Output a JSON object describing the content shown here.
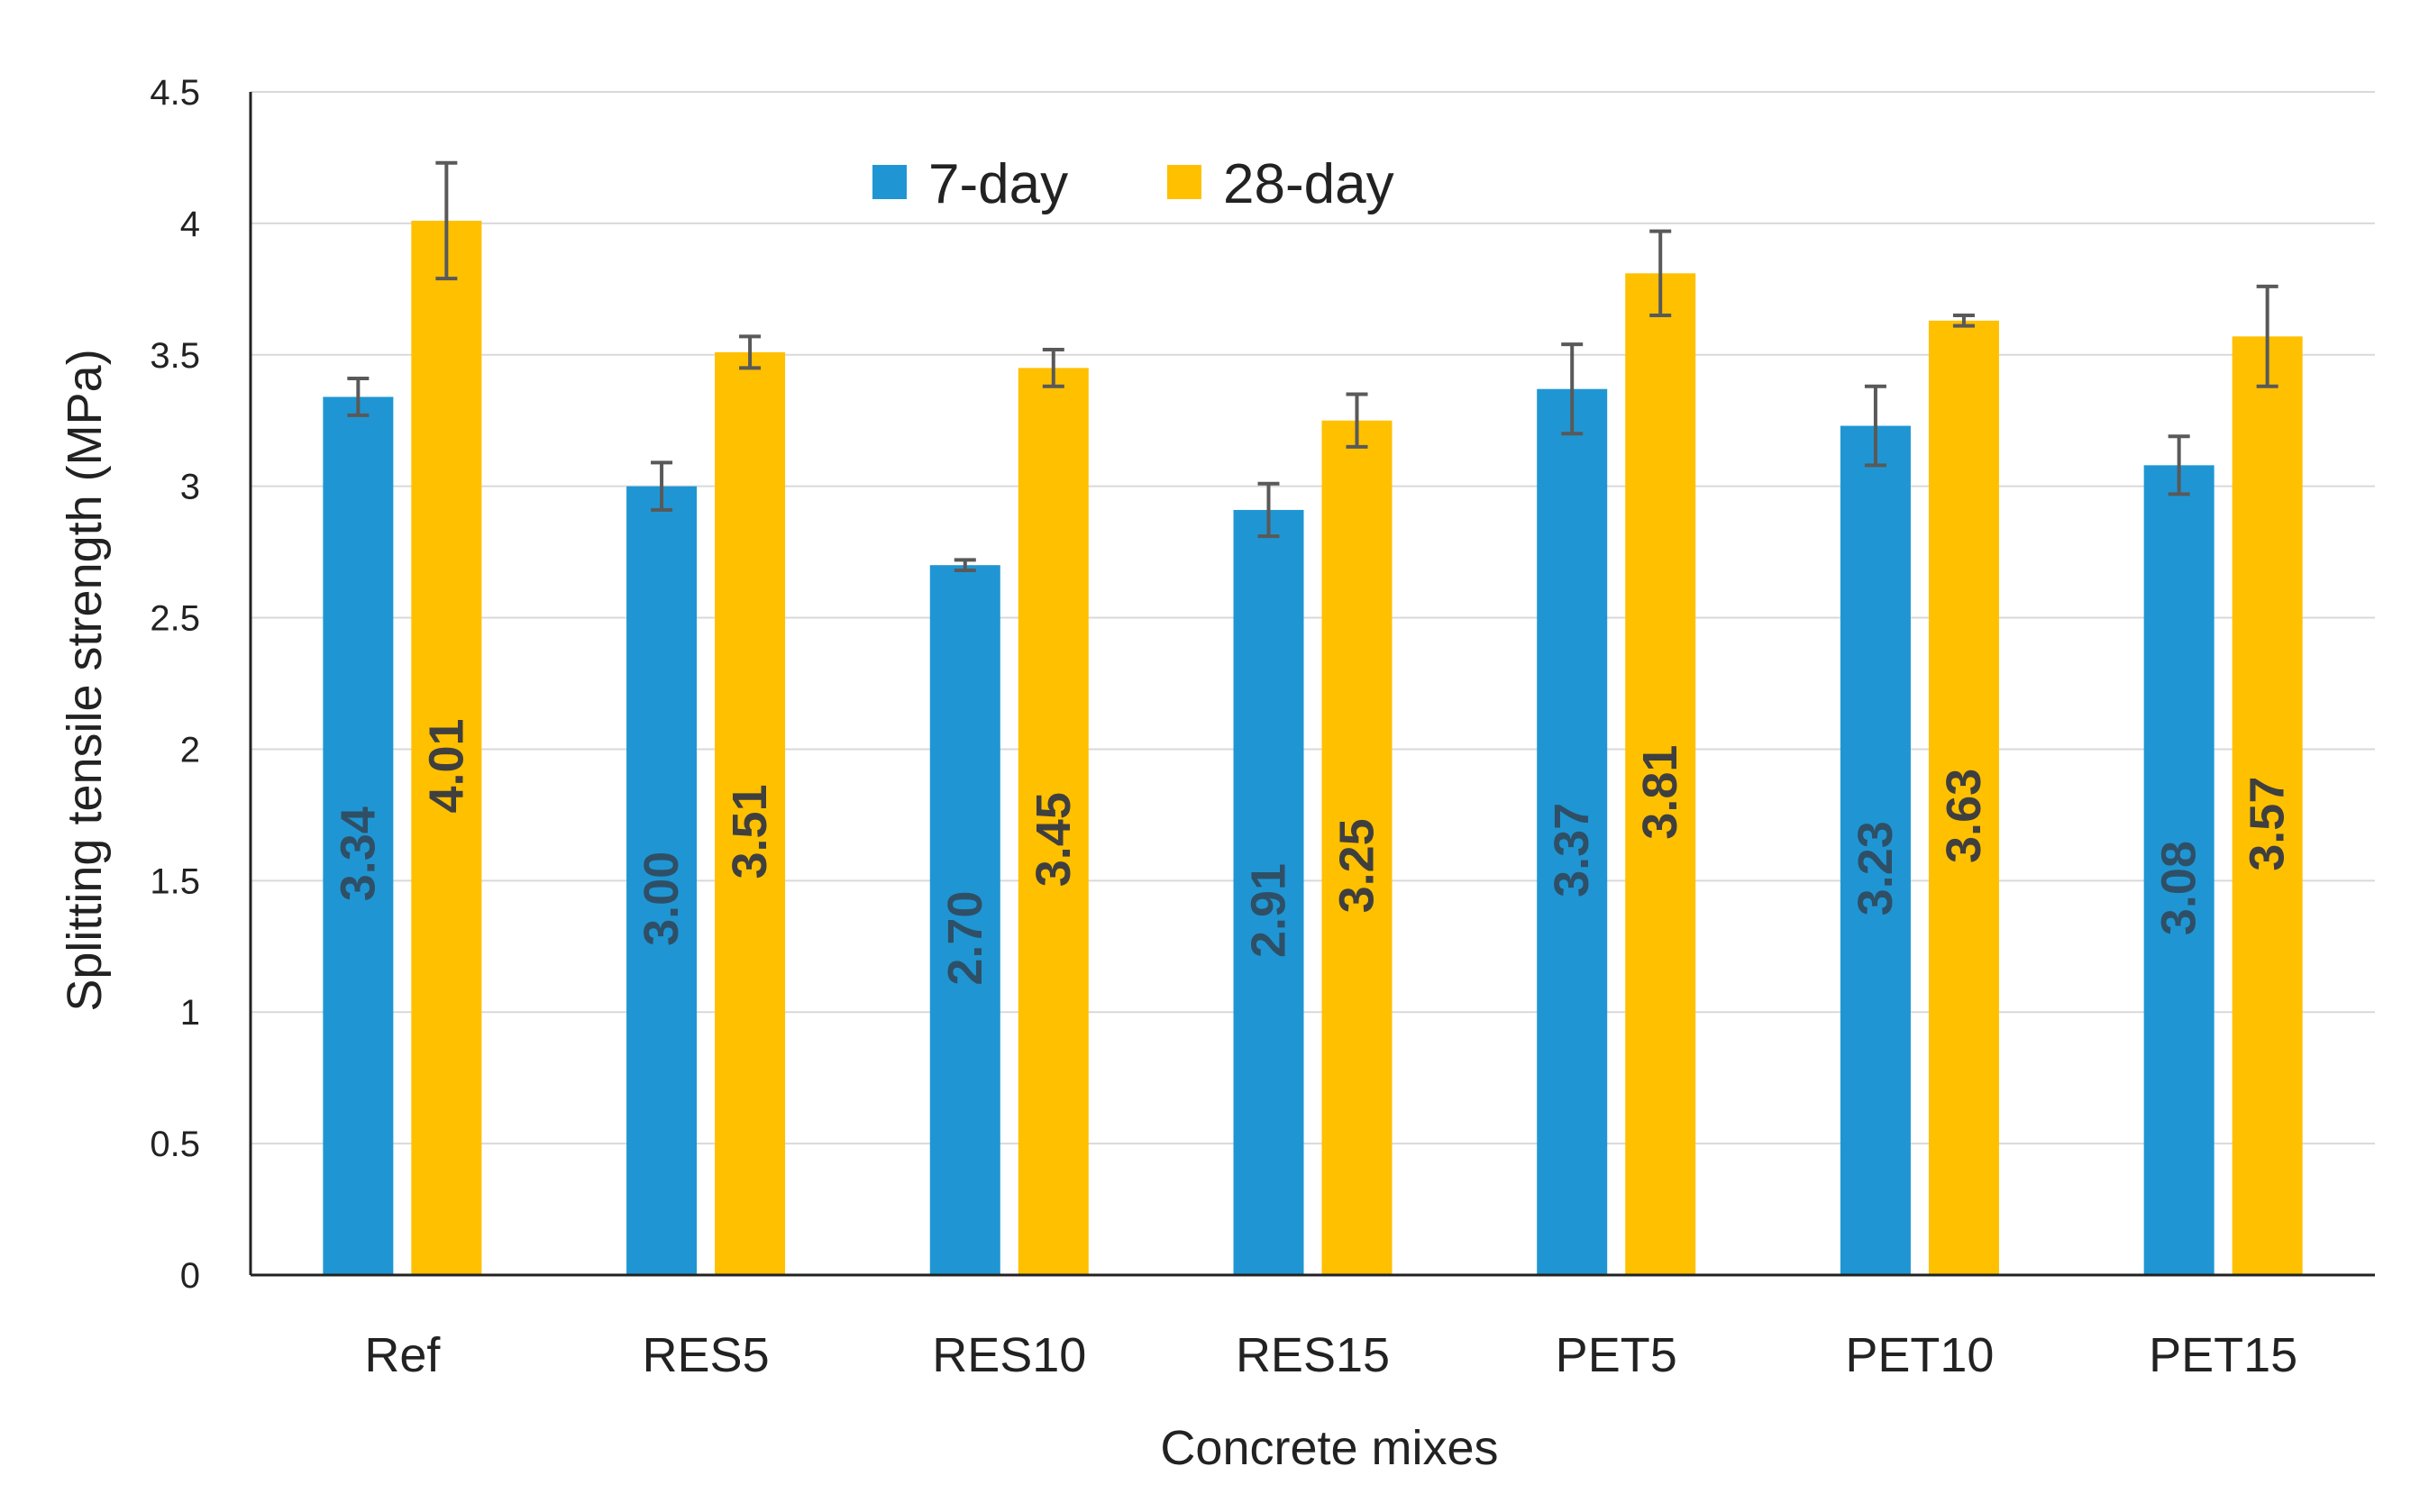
{
  "chart_data": {
    "type": "bar",
    "title": "",
    "xlabel": "Concrete mixes",
    "ylabel": "Splitting tensile strength (MPa)",
    "ylim": [
      0,
      4.5
    ],
    "yticks": [
      "0",
      "0.5",
      "1",
      "1.5",
      "2",
      "2.5",
      "3",
      "3.5",
      "4",
      "4.5"
    ],
    "grid": true,
    "legend_position": "top-center",
    "categories": [
      "Ref",
      "RES5",
      "RES10",
      "RES15",
      "PET5",
      "PET10",
      "PET15"
    ],
    "series": [
      {
        "name": "7-day",
        "color": "#1F96D3",
        "label_color": "#2F4F66",
        "values": [
          3.34,
          3.0,
          2.7,
          2.91,
          3.37,
          3.23,
          3.08
        ],
        "labels": [
          "3.34",
          "3.00",
          "2.70",
          "2.91",
          "3.37",
          "3.23",
          "3.08"
        ],
        "error": [
          0.07,
          0.09,
          0.02,
          0.1,
          0.17,
          0.15,
          0.11
        ]
      },
      {
        "name": "28-day",
        "color": "#FFC000",
        "label_color": "#3F3F3F",
        "values": [
          4.01,
          3.51,
          3.45,
          3.25,
          3.81,
          3.63,
          3.57
        ],
        "labels": [
          "4.01",
          "3.51",
          "3.45",
          "3.25",
          "3.81",
          "3.63",
          "3.57"
        ],
        "error": [
          0.22,
          0.06,
          0.07,
          0.1,
          0.16,
          0.02,
          0.19
        ]
      }
    ]
  },
  "colors": {
    "grid": "#D9D9D9",
    "axis": "#222222",
    "error_bar": "#595959"
  }
}
